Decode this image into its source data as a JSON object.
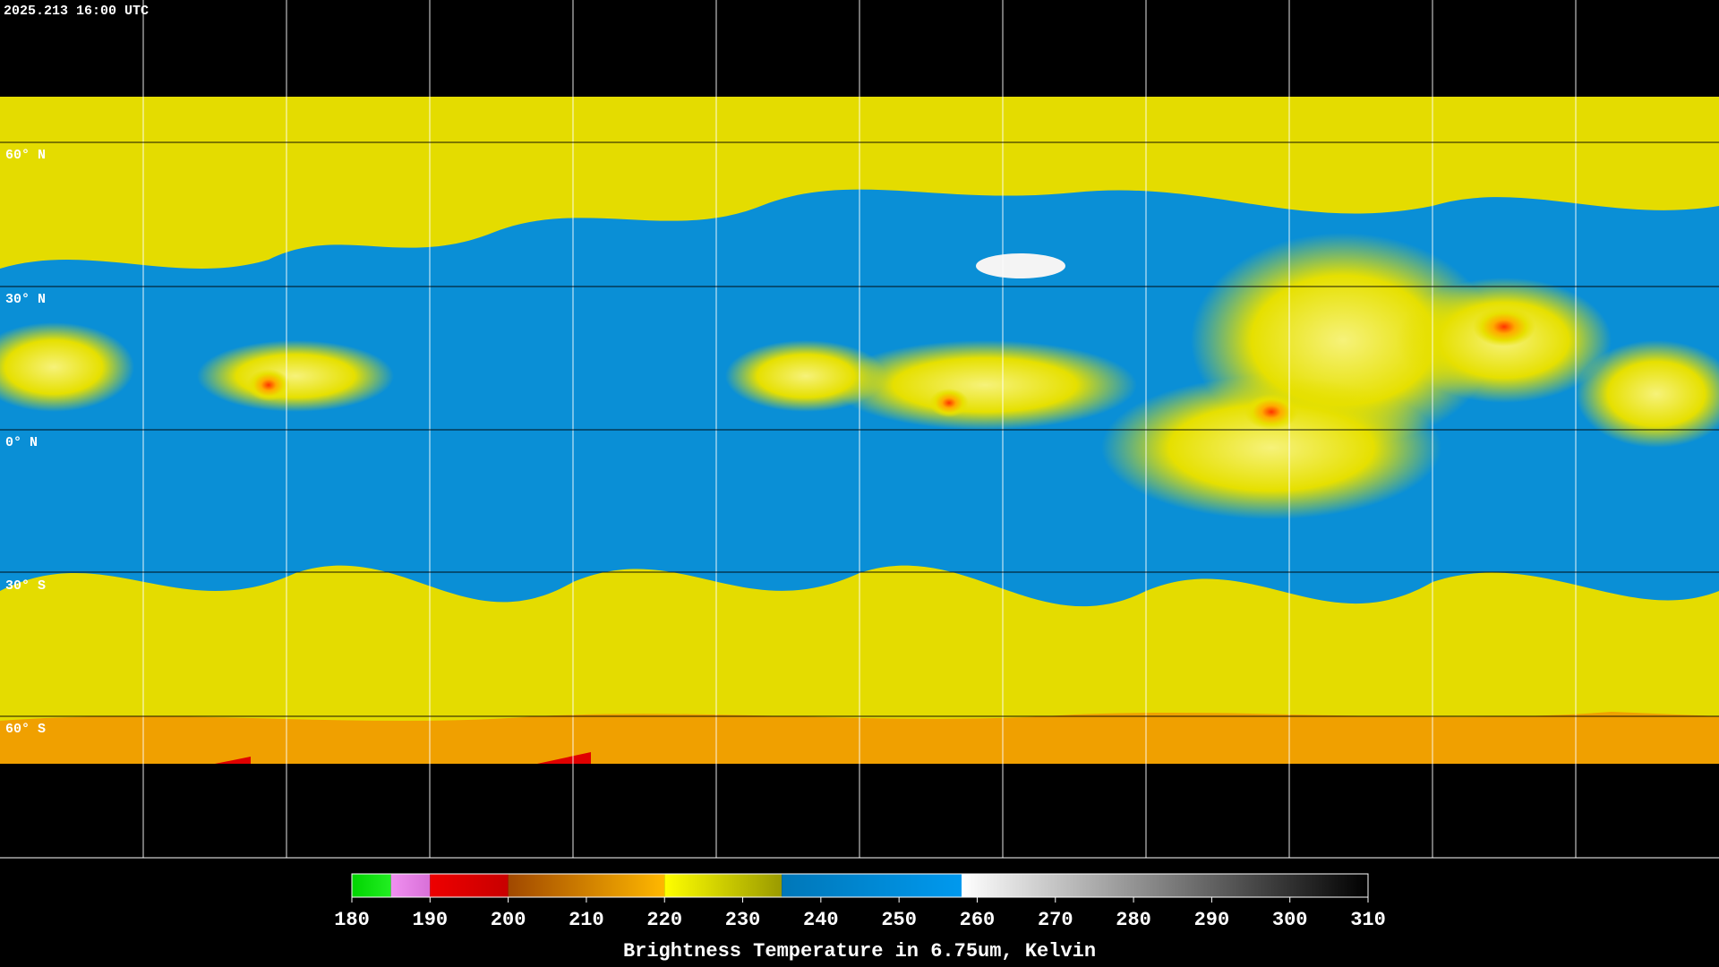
{
  "header": {
    "timestamp": "2025.213 16:00 UTC"
  },
  "map": {
    "lat_labels": [
      "60° N",
      "30° N",
      "0° N",
      "30° S",
      "60° S"
    ]
  },
  "colorbar": {
    "title": "Brightness Temperature in 6.75um, Kelvin",
    "range": [
      180,
      310
    ],
    "ticks": [
      180,
      190,
      200,
      210,
      220,
      230,
      240,
      250,
      260,
      270,
      280,
      290,
      300,
      310
    ],
    "segments": [
      {
        "from": 180,
        "to": 185,
        "colors": [
          "#00d400",
          "#22ee22"
        ]
      },
      {
        "from": 185,
        "to": 190,
        "colors": [
          "#f090f0",
          "#d870d8"
        ]
      },
      {
        "from": 190,
        "to": 200,
        "colors": [
          "#ee0000",
          "#c80000"
        ]
      },
      {
        "from": 200,
        "to": 220,
        "colors": [
          "#a04800",
          "#ffb800"
        ]
      },
      {
        "from": 220,
        "to": 235,
        "colors": [
          "#ffff00",
          "#9a9a00"
        ]
      },
      {
        "from": 235,
        "to": 258,
        "colors": [
          "#0077b8",
          "#0099ee"
        ]
      },
      {
        "from": 258,
        "to": 310,
        "colors": [
          "#ffffff",
          "#000000"
        ]
      }
    ]
  }
}
